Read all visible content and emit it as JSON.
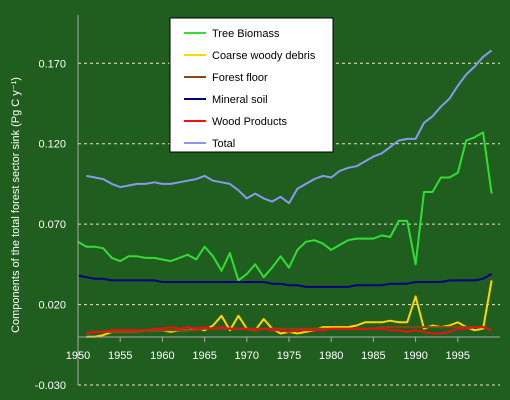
{
  "chart_data": {
    "type": "line",
    "ylabel": "Components of the total forest sector sink (Pg C y⁻¹)",
    "xlim": [
      1950,
      2000
    ],
    "ylim": [
      -0.03,
      0.2
    ],
    "grid": "horizontal dashed",
    "legend_position": "top-center",
    "x_ticks": [
      1950,
      1955,
      1960,
      1965,
      1970,
      1975,
      1980,
      1985,
      1990,
      1995
    ],
    "y_ticks": [
      {
        "value": -0.03,
        "label": "-0.030"
      },
      {
        "value": 0.02,
        "label": "0.020"
      },
      {
        "value": 0.07,
        "label": "0.070"
      },
      {
        "value": 0.12,
        "label": "0.120"
      },
      {
        "value": 0.17,
        "label": "0.170"
      }
    ],
    "x": [
      1950,
      1951,
      1952,
      1953,
      1954,
      1955,
      1956,
      1957,
      1958,
      1959,
      1960,
      1961,
      1962,
      1963,
      1964,
      1965,
      1966,
      1967,
      1968,
      1969,
      1970,
      1971,
      1972,
      1973,
      1974,
      1975,
      1976,
      1977,
      1978,
      1979,
      1980,
      1981,
      1982,
      1983,
      1984,
      1985,
      1986,
      1987,
      1988,
      1989,
      1990,
      1991,
      1992,
      1993,
      1994,
      1995,
      1996,
      1997,
      1998,
      1999
    ],
    "series": [
      {
        "name": "Tree Biomass",
        "color": "#33dd33",
        "values": [
          0.059,
          0.056,
          0.056,
          0.055,
          0.049,
          0.047,
          0.05,
          0.05,
          0.049,
          0.049,
          0.048,
          0.047,
          0.049,
          0.051,
          0.048,
          0.056,
          0.05,
          0.041,
          0.052,
          0.035,
          0.039,
          0.045,
          0.037,
          0.043,
          0.05,
          0.043,
          0.054,
          0.059,
          0.06,
          0.058,
          0.054,
          0.057,
          0.06,
          0.061,
          0.061,
          0.061,
          0.063,
          0.062,
          0.072,
          0.072,
          0.045,
          0.09,
          0.09,
          0.099,
          0.099,
          0.102,
          0.122,
          0.124,
          0.127,
          0.089
        ]
      },
      {
        "name": "Coarse woody debris",
        "color": "#ffd700",
        "values": [
          null,
          0.0,
          0.0,
          0.001,
          0.003,
          0.003,
          0.003,
          0.003,
          0.004,
          0.004,
          0.004,
          0.003,
          0.004,
          0.004,
          0.005,
          0.004,
          0.007,
          0.013,
          0.004,
          0.013,
          0.005,
          0.004,
          0.011,
          0.005,
          0.002,
          0.003,
          0.002,
          0.003,
          0.004,
          0.006,
          0.006,
          0.006,
          0.006,
          0.007,
          0.009,
          0.009,
          0.009,
          0.01,
          0.009,
          0.009,
          0.025,
          0.005,
          0.007,
          0.006,
          0.007,
          0.009,
          0.006,
          0.004,
          0.005,
          0.035
        ]
      },
      {
        "name": "Forest floor",
        "color": "#8b4513",
        "values": [
          null,
          0.002,
          0.003,
          0.003,
          0.003,
          0.003,
          0.003,
          0.003,
          0.004,
          0.004,
          0.004,
          0.004,
          0.004,
          0.004,
          0.004,
          0.005,
          0.005,
          0.005,
          0.005,
          0.005,
          0.005,
          0.005,
          0.005,
          0.005,
          0.005,
          0.005,
          0.005,
          0.005,
          0.005,
          0.005,
          0.005,
          0.005,
          0.005,
          0.005,
          0.005,
          0.005,
          0.006,
          0.006,
          0.006,
          0.006,
          0.006,
          0.006,
          0.006,
          0.006,
          0.006,
          0.006,
          0.006,
          0.006,
          0.006,
          0.004
        ]
      },
      {
        "name": "Mineral soil",
        "color": "#000080",
        "values": [
          0.038,
          0.037,
          0.036,
          0.036,
          0.035,
          0.035,
          0.035,
          0.035,
          0.035,
          0.035,
          0.034,
          0.034,
          0.034,
          0.034,
          0.034,
          0.034,
          0.034,
          0.034,
          0.034,
          0.034,
          0.034,
          0.034,
          0.034,
          0.033,
          0.033,
          0.032,
          0.032,
          0.031,
          0.031,
          0.031,
          0.031,
          0.031,
          0.031,
          0.032,
          0.032,
          0.032,
          0.032,
          0.033,
          0.033,
          0.033,
          0.034,
          0.034,
          0.034,
          0.034,
          0.035,
          0.035,
          0.035,
          0.035,
          0.036,
          0.039
        ]
      },
      {
        "name": "Wood Products",
        "color": "#ee1111",
        "values": [
          null,
          0.002,
          0.003,
          0.003,
          0.004,
          0.004,
          0.004,
          0.004,
          0.004,
          0.005,
          0.005,
          0.006,
          0.005,
          0.006,
          0.005,
          0.006,
          0.005,
          0.006,
          0.005,
          0.005,
          0.005,
          0.004,
          0.005,
          0.004,
          0.004,
          0.003,
          0.004,
          0.004,
          0.004,
          0.004,
          0.005,
          0.005,
          0.005,
          0.005,
          0.005,
          0.005,
          0.005,
          0.004,
          0.004,
          0.003,
          0.004,
          0.003,
          0.002,
          0.002,
          0.003,
          0.005,
          0.005,
          0.006,
          0.006,
          0.004
        ]
      },
      {
        "name": "Total",
        "color": "#8899ee",
        "values": [
          null,
          0.1,
          0.099,
          0.098,
          0.095,
          0.093,
          0.094,
          0.095,
          0.095,
          0.096,
          0.095,
          0.095,
          0.096,
          0.097,
          0.098,
          0.1,
          0.097,
          0.096,
          0.095,
          0.091,
          0.086,
          0.089,
          0.086,
          0.084,
          0.087,
          0.083,
          0.092,
          0.095,
          0.098,
          0.1,
          0.099,
          0.103,
          0.105,
          0.106,
          0.109,
          0.112,
          0.114,
          0.118,
          0.122,
          0.123,
          0.123,
          0.133,
          0.137,
          0.143,
          0.148,
          0.156,
          0.163,
          0.168,
          0.174,
          0.178
        ]
      }
    ]
  }
}
